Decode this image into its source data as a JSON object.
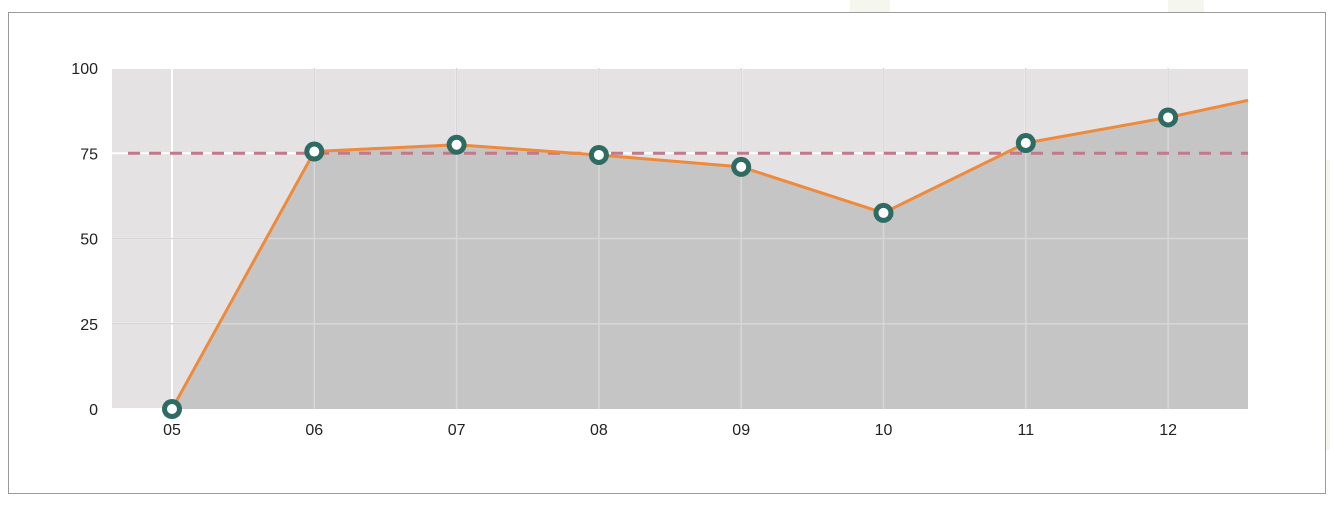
{
  "chart_data": {
    "type": "area",
    "categories": [
      "05",
      "06",
      "07",
      "08",
      "09",
      "10",
      "11",
      "12"
    ],
    "series": [
      {
        "values": [
          0,
          75.5,
          77.5,
          74.5,
          71,
          57.5,
          78,
          85.5
        ],
        "end_value": 90.5
      }
    ],
    "reference_line": {
      "value": 75,
      "style": "dashed"
    },
    "yticks": [
      "0",
      "25",
      "50",
      "75",
      "100"
    ],
    "ylim": [
      0,
      100
    ],
    "title": "",
    "xlabel": "",
    "ylabel": "",
    "grid": true,
    "legend": "none",
    "colors": {
      "plot_background": "#e4e2e3",
      "area_fill": "#c6c5c6",
      "line": "#ee8a3c",
      "marker_ring": "#2e6b63",
      "marker_center": "#ffffff",
      "reference_line": "#c07a8a",
      "grid": "#ffffff"
    }
  }
}
